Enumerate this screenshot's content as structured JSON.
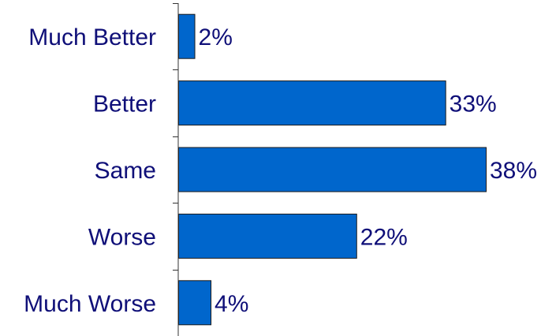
{
  "chart_data": {
    "type": "bar",
    "orientation": "horizontal",
    "categories": [
      "Much Better",
      "Better",
      "Same",
      "Worse",
      "Much Worse"
    ],
    "values": [
      2,
      33,
      38,
      22,
      4
    ],
    "value_labels": [
      "2%",
      "33%",
      "38%",
      "22%",
      "4%"
    ],
    "xlim": [
      0,
      38
    ],
    "grid": false,
    "legend": "none",
    "bar_color": "#0066cc",
    "bar_edge_color": "#1a1a1a",
    "text_color": "#0f0f78",
    "axis_color": "#333333"
  }
}
